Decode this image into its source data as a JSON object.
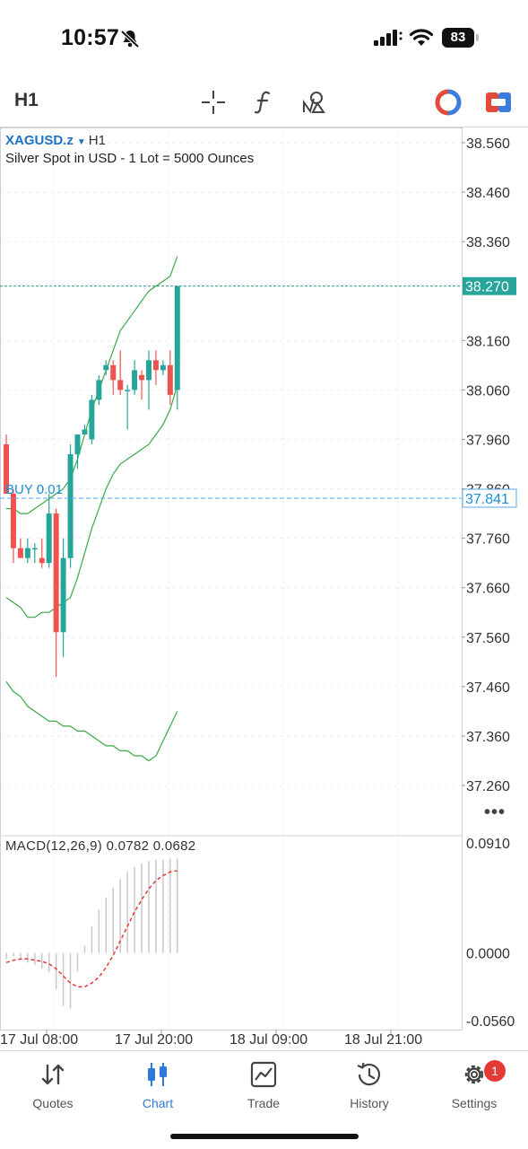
{
  "status_bar": {
    "time": "10:57",
    "battery": "83"
  },
  "toolbar": {
    "timeframe": "H1"
  },
  "symbol": {
    "name": "XAGUSD.z",
    "timeframe": "H1",
    "description": "Silver Spot in USD - 1 Lot = 5000 Ounces"
  },
  "chart_data": {
    "type": "candlestick",
    "price_axis": [
      "38.560",
      "38.460",
      "38.360",
      "38.160",
      "38.060",
      "37.960",
      "37.860",
      "37.760",
      "37.660",
      "37.560",
      "37.460",
      "37.360",
      "37.260"
    ],
    "ylim": [
      37.18,
      38.6
    ],
    "current_price": "38.270",
    "position_line": {
      "label": "BUY 0.01",
      "price": "37.841"
    },
    "time_labels": [
      "17 Jul 08:00",
      "17 Jul 20:00",
      "18 Jul 09:00",
      "18 Jul 21:00"
    ],
    "candles": [
      {
        "o": 37.95,
        "h": 37.97,
        "l": 37.85,
        "c": 37.85
      },
      {
        "o": 37.85,
        "h": 37.86,
        "l": 37.71,
        "c": 37.74
      },
      {
        "o": 37.74,
        "h": 37.76,
        "l": 37.72,
        "c": 37.72
      },
      {
        "o": 37.72,
        "h": 37.76,
        "l": 37.71,
        "c": 37.74
      },
      {
        "o": 37.74,
        "h": 37.75,
        "l": 37.71,
        "c": 37.74
      },
      {
        "o": 37.72,
        "h": 37.76,
        "l": 37.7,
        "c": 37.71
      },
      {
        "o": 37.71,
        "h": 37.85,
        "l": 37.7,
        "c": 37.81
      },
      {
        "o": 37.81,
        "h": 37.82,
        "l": 37.48,
        "c": 37.57
      },
      {
        "o": 37.57,
        "h": 37.76,
        "l": 37.52,
        "c": 37.72
      },
      {
        "o": 37.72,
        "h": 37.95,
        "l": 37.7,
        "c": 37.93
      },
      {
        "o": 37.93,
        "h": 37.97,
        "l": 37.9,
        "c": 37.97
      },
      {
        "o": 37.97,
        "h": 37.99,
        "l": 37.97,
        "c": 37.98
      },
      {
        "o": 37.96,
        "h": 38.05,
        "l": 37.95,
        "c": 38.04
      },
      {
        "o": 38.04,
        "h": 38.09,
        "l": 38.03,
        "c": 38.08
      },
      {
        "o": 38.1,
        "h": 38.12,
        "l": 38.09,
        "c": 38.11
      },
      {
        "o": 38.11,
        "h": 38.12,
        "l": 38.05,
        "c": 38.08
      },
      {
        "o": 38.08,
        "h": 38.14,
        "l": 38.05,
        "c": 38.06
      },
      {
        "o": 38.06,
        "h": 38.07,
        "l": 37.98,
        "c": 38.06
      },
      {
        "o": 38.06,
        "h": 38.12,
        "l": 38.05,
        "c": 38.1
      },
      {
        "o": 38.09,
        "h": 38.1,
        "l": 38.04,
        "c": 38.08
      },
      {
        "o": 38.08,
        "h": 38.14,
        "l": 38.02,
        "c": 38.12
      },
      {
        "o": 38.12,
        "h": 38.14,
        "l": 38.07,
        "c": 38.1
      },
      {
        "o": 38.1,
        "h": 38.12,
        "l": 38.09,
        "c": 38.11
      },
      {
        "o": 38.11,
        "h": 38.14,
        "l": 38.03,
        "c": 38.05
      },
      {
        "o": 38.06,
        "h": 38.27,
        "l": 38.02,
        "c": 38.27
      }
    ],
    "bollinger": {
      "upper": [
        37.82,
        37.82,
        37.81,
        37.81,
        37.82,
        37.83,
        37.84,
        37.85,
        37.86,
        37.88,
        37.92,
        37.97,
        38.02,
        38.06,
        38.1,
        38.14,
        38.18,
        38.2,
        38.22,
        38.24,
        38.26,
        38.27,
        38.28,
        38.29,
        38.33
      ],
      "middle": [
        37.64,
        37.63,
        37.62,
        37.6,
        37.6,
        37.61,
        37.61,
        37.62,
        37.63,
        37.64,
        37.68,
        37.73,
        37.78,
        37.82,
        37.86,
        37.89,
        37.91,
        37.92,
        37.93,
        37.94,
        37.95,
        37.97,
        37.99,
        38.02,
        38.07
      ],
      "lower": [
        37.47,
        37.45,
        37.44,
        37.42,
        37.41,
        37.4,
        37.39,
        37.39,
        37.38,
        37.38,
        37.37,
        37.37,
        37.36,
        37.35,
        37.34,
        37.34,
        37.33,
        37.33,
        37.32,
        37.32,
        37.31,
        37.32,
        37.35,
        37.38,
        37.41
      ]
    },
    "macd": {
      "label": "MACD(12,26,9) 0.0782 0.0682",
      "axis": [
        "0.0910",
        "0.0000",
        "-0.0560"
      ],
      "ylim": [
        -0.062,
        0.094
      ],
      "histogram": [
        -0.005,
        -0.003,
        -0.004,
        -0.008,
        -0.01,
        -0.013,
        -0.016,
        -0.03,
        -0.044,
        -0.046,
        -0.015,
        0.006,
        0.022,
        0.036,
        0.046,
        0.054,
        0.061,
        0.067,
        0.071,
        0.074,
        0.076,
        0.077,
        0.077,
        0.078,
        0.078
      ],
      "signal": [
        -0.008,
        -0.006,
        -0.005,
        -0.005,
        -0.006,
        -0.007,
        -0.009,
        -0.013,
        -0.019,
        -0.025,
        -0.028,
        -0.028,
        -0.025,
        -0.02,
        -0.012,
        -0.002,
        0.01,
        0.022,
        0.034,
        0.044,
        0.053,
        0.06,
        0.064,
        0.067,
        0.068
      ]
    }
  },
  "nav": {
    "items": [
      {
        "label": "Quotes"
      },
      {
        "label": "Chart"
      },
      {
        "label": "Trade"
      },
      {
        "label": "History"
      },
      {
        "label": "Settings",
        "badge": "1"
      }
    ]
  }
}
